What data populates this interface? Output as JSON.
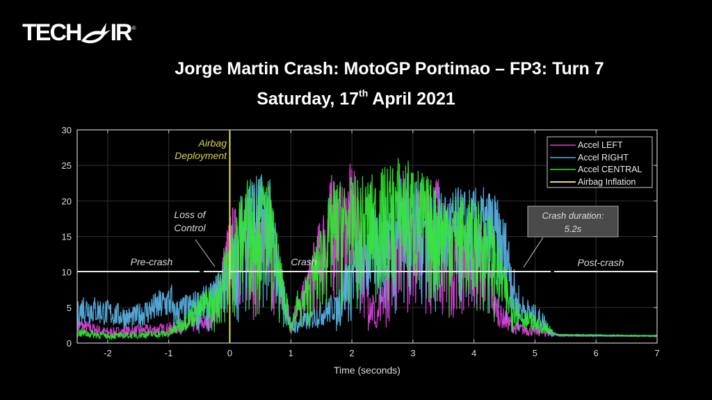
{
  "logo": {
    "text_left": "TECH",
    "text_right": "IR",
    "registered": "®"
  },
  "header": {
    "title_line1": "Jorge Martin Crash: MotoGP Portimao – FP3: Turn 7",
    "title_line2_prefix": "Saturday, 17",
    "title_line2_sup": "th",
    "title_line2_suffix": " April 2021"
  },
  "chart_data": {
    "type": "line",
    "title": "Jorge Martin Crash: MotoGP Portimao – FP3: Turn 7 — Saturday, 17th April 2021",
    "xlabel": "Time (seconds)",
    "ylabel": "",
    "xlim": [
      -2.5,
      7
    ],
    "ylim": [
      0,
      30
    ],
    "xticks": [
      -2,
      -1,
      0,
      1,
      2,
      3,
      4,
      5,
      6,
      7
    ],
    "yticks": [
      0,
      5,
      10,
      15,
      20,
      25,
      30
    ],
    "grid": true,
    "legend_position": "upper right",
    "legend": [
      {
        "name": "Accel LEFT",
        "color": "#e040e0"
      },
      {
        "name": "Accel RIGHT",
        "color": "#5ab4e6"
      },
      {
        "name": "Accel CENTRAL",
        "color": "#33e833"
      },
      {
        "name": "Airbag Inflation",
        "color": "#e6e64a"
      }
    ],
    "series": [
      {
        "name": "Accel LEFT",
        "color": "#e040e0",
        "peaks": [
          [
            -2.5,
            2.5
          ],
          [
            -2,
            1.5
          ],
          [
            -1,
            2
          ],
          [
            -0.3,
            3
          ],
          [
            -0.25,
            7
          ],
          [
            0.02,
            19.5
          ],
          [
            0.3,
            19
          ],
          [
            0.65,
            20
          ],
          [
            1.0,
            2
          ],
          [
            1.7,
            25
          ],
          [
            1.85,
            22
          ],
          [
            2.0,
            26
          ],
          [
            2.1,
            22
          ],
          [
            2.4,
            2
          ],
          [
            2.8,
            26
          ],
          [
            2.95,
            21
          ],
          [
            3.4,
            25
          ],
          [
            3.55,
            18
          ],
          [
            4.2,
            17
          ],
          [
            4.4,
            4
          ],
          [
            4.7,
            2
          ],
          [
            5.2,
            1.5
          ],
          [
            5.4,
            1
          ],
          [
            7,
            1
          ]
        ]
      },
      {
        "name": "Accel RIGHT",
        "color": "#5ab4e6",
        "peaks": [
          [
            -2.5,
            4
          ],
          [
            -2.4,
            5
          ],
          [
            -1.6,
            3.5
          ],
          [
            -0.3,
            8.5
          ],
          [
            0.02,
            14
          ],
          [
            0.3,
            25
          ],
          [
            0.65,
            23.5
          ],
          [
            1.0,
            2
          ],
          [
            1.7,
            5
          ],
          [
            1.9,
            12
          ],
          [
            2.3,
            19
          ],
          [
            2.6,
            21
          ],
          [
            2.8,
            25
          ],
          [
            3.2,
            22
          ],
          [
            3.5,
            22
          ],
          [
            4.1,
            22
          ],
          [
            4.3,
            22
          ],
          [
            4.55,
            17
          ],
          [
            4.75,
            5
          ],
          [
            5.15,
            3
          ],
          [
            5.3,
            1.2
          ],
          [
            7,
            1
          ]
        ]
      },
      {
        "name": "Accel CENTRAL",
        "color": "#33e833",
        "peaks": [
          [
            -2.5,
            1.5
          ],
          [
            -2,
            1
          ],
          [
            -1,
            1.3
          ],
          [
            -0.3,
            6
          ],
          [
            0.02,
            17
          ],
          [
            0.3,
            24
          ],
          [
            0.65,
            23
          ],
          [
            1.0,
            2
          ],
          [
            1.7,
            23
          ],
          [
            2.4,
            24
          ],
          [
            2.75,
            26.5
          ],
          [
            2.95,
            26
          ],
          [
            3.45,
            22
          ],
          [
            4.1,
            20
          ],
          [
            4.3,
            18
          ],
          [
            4.7,
            4
          ],
          [
            5.15,
            2
          ],
          [
            5.4,
            1.1
          ],
          [
            7,
            1
          ]
        ]
      },
      {
        "name": "Airbag Inflation",
        "color": "#e6e64a",
        "x": [
          0,
          0
        ],
        "y": [
          0,
          30
        ]
      }
    ],
    "annotations": [
      {
        "text": "Airbag Deployment",
        "x": 0,
        "color": "#d8d84a"
      },
      {
        "text": "Loss of Control",
        "x": -0.25
      },
      {
        "text": "Pre-crash",
        "x_range": [
          -2.5,
          -0.3
        ],
        "y": 10
      },
      {
        "text": "Crash",
        "x_range": [
          0,
          5.2
        ],
        "y": 10
      },
      {
        "text": "Post-crash",
        "x_range": [
          5.3,
          7
        ],
        "y": 10
      },
      {
        "text": "Crash duration: 5.2s",
        "box": true
      }
    ]
  },
  "labels": {
    "airbag_line1": "Airbag",
    "airbag_line2": "Deployment",
    "loss_line1": "Loss of",
    "loss_line2": "Control",
    "precrash": "Pre-crash",
    "crash": "Crash",
    "postcrash": "Post-crash",
    "duration_line1": "Crash duration:",
    "duration_line2": "5.2s",
    "xlabel": "Time (seconds)",
    "legend_left": "Accel LEFT",
    "legend_right": "Accel RIGHT",
    "legend_central": "Accel CENTRAL",
    "legend_airbag": "Airbag Inflation"
  }
}
